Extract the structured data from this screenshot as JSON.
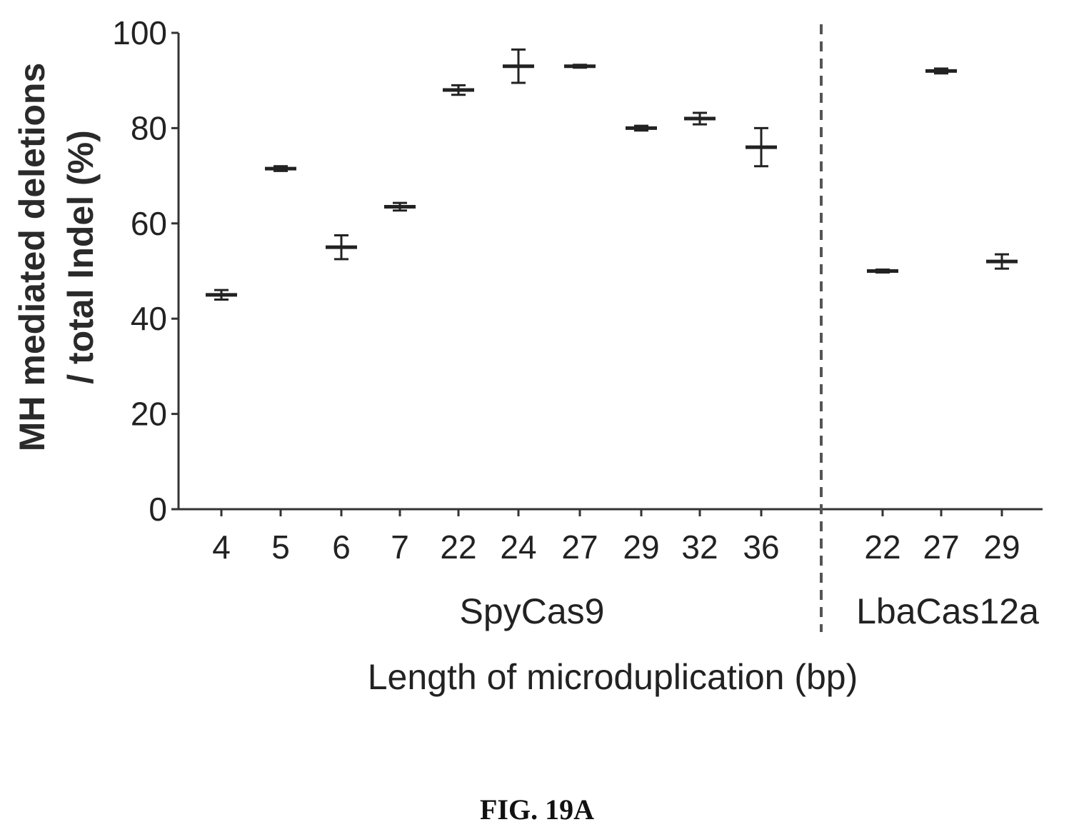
{
  "chart_data": {
    "type": "scatter",
    "ylabel_lines": [
      "MH mediated deletions",
      "/ total Indel (%)"
    ],
    "xlabel": "Length of microduplication (bp)",
    "ylim": [
      0,
      100
    ],
    "yticks": [
      0,
      20,
      40,
      60,
      80,
      100
    ],
    "grid": false,
    "groups": [
      {
        "name": "SpyCas9",
        "categories": [
          "4",
          "5",
          "6",
          "7",
          "22",
          "24",
          "27",
          "29",
          "32",
          "36"
        ],
        "means": [
          45,
          71.5,
          55,
          63.5,
          88,
          93,
          93,
          80,
          82,
          76
        ],
        "errors": [
          1,
          0.5,
          2.5,
          0.8,
          1,
          3.5,
          0.3,
          0.5,
          1.2,
          4
        ]
      },
      {
        "name": "LbaCas12a",
        "categories": [
          "22",
          "27",
          "29"
        ],
        "means": [
          50,
          92,
          52
        ],
        "errors": [
          0.3,
          0.5,
          1.5
        ]
      }
    ],
    "divider_between_groups": "dashed vertical line"
  },
  "caption": "FIG. 19A"
}
